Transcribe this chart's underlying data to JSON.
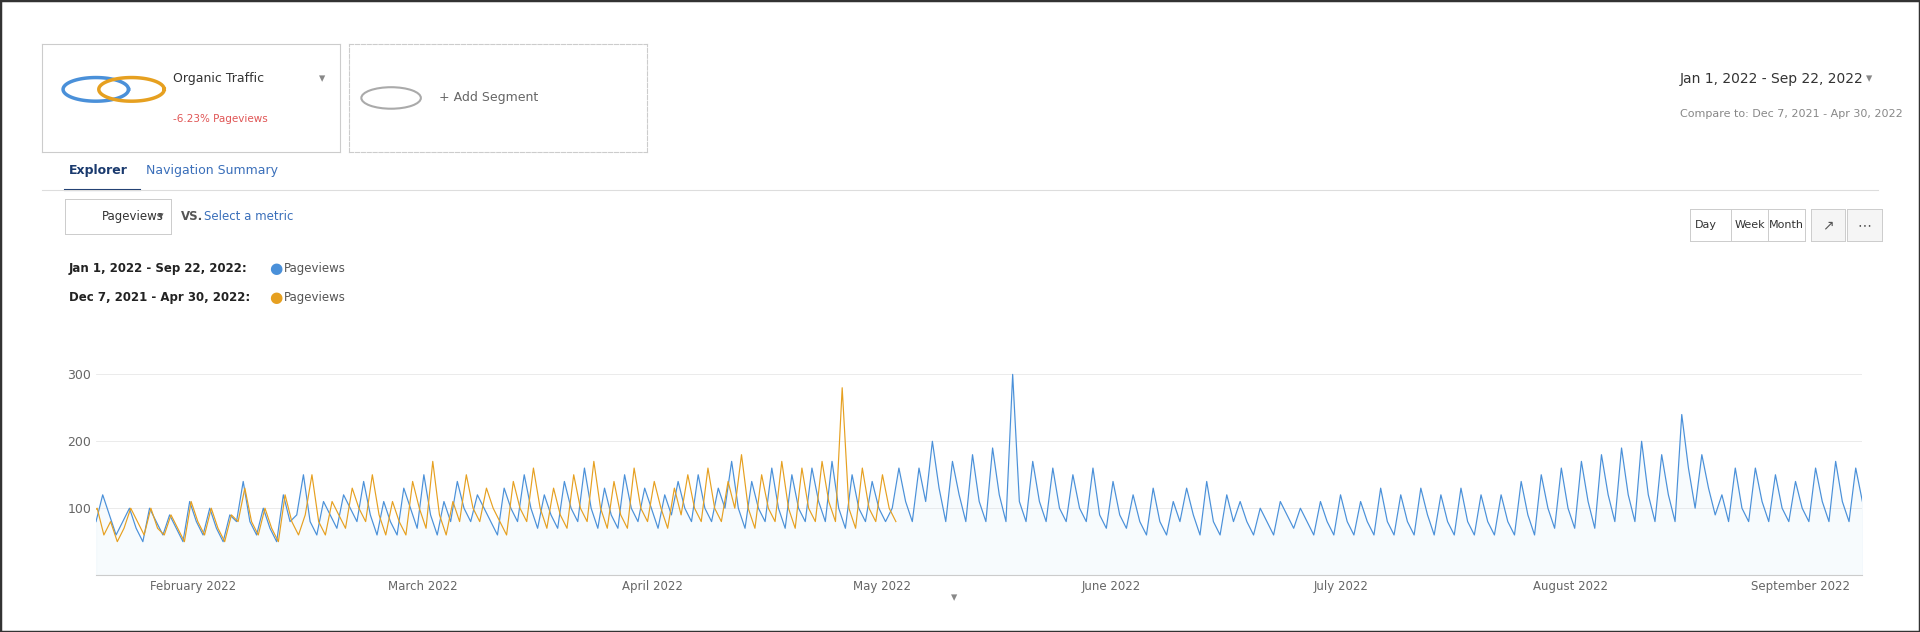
{
  "title": "Jan 1, 2022 - Sep 22, 2022",
  "compare_title": "Compare to: Dec 7, 2021 - Apr 30, 2022",
  "segment_label": "Organic Traffic",
  "segment_sub": "-6.23% Pageviews",
  "add_segment": "+ Add Segment",
  "tab1": "Explorer",
  "tab2": "Navigation Summary",
  "metric_label": "Pageviews",
  "vs_label": "VS.",
  "select_metric": "Select a metric",
  "day_label": "Day",
  "week_label": "Week",
  "month_label": "Month",
  "legend1_date": "Jan 1, 2022 - Sep 22, 2022:",
  "legend1_metric": "Pageviews",
  "legend2_date": "Dec 7, 2021 - Apr 30, 2022:",
  "legend2_metric": "Pageviews",
  "yticks": [
    100,
    200,
    300
  ],
  "ylim": [
    0,
    340
  ],
  "x_months": [
    "February 2022",
    "March 2022",
    "April 2022",
    "May 2022",
    "June 2022",
    "July 2022",
    "August 2022",
    "September 2022"
  ],
  "blue_color": "#4a90d9",
  "orange_color": "#e6a020",
  "fill_color": "#d6eaf8",
  "border_color": "#333333"
}
